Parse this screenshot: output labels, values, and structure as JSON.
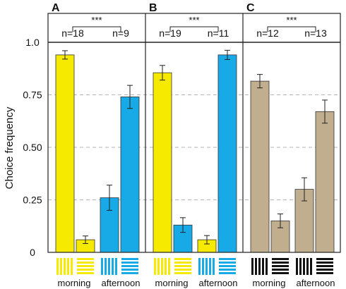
{
  "chart_data": {
    "type": "bar",
    "ylabel": "Choice frequency",
    "ylim": [
      0,
      1.0
    ],
    "yticks": [
      {
        "value": 0,
        "label": "0"
      },
      {
        "value": 0.25,
        "label": "0.25"
      },
      {
        "value": 0.5,
        "label": "0.50"
      },
      {
        "value": 0.75,
        "label": "0.75"
      },
      {
        "value": 1.0,
        "label": "1.0"
      }
    ],
    "grid": "dashed horizontal",
    "significance": "***",
    "x_group_labels": [
      "morning",
      "afternoon"
    ],
    "pattern_order": [
      "vertical-stripes",
      "horizontal-stripes",
      "vertical-stripes",
      "horizontal-stripes"
    ],
    "panels": [
      {
        "label": "A",
        "n_labels": [
          "n=18",
          "n=9"
        ],
        "bar_colors": [
          "#f5ea00",
          "#f5ea00",
          "#18a9e7",
          "#18a9e7"
        ],
        "pattern_colors": [
          "#f5ea00",
          "#f5ea00",
          "#18a9e7",
          "#18a9e7"
        ],
        "values": [
          0.94,
          0.06,
          0.26,
          0.74
        ],
        "errors": [
          0.02,
          0.018,
          0.06,
          0.055
        ]
      },
      {
        "label": "B",
        "n_labels": [
          "n=19",
          "n=11"
        ],
        "bar_colors": [
          "#f5ea00",
          "#18a9e7",
          "#f5ea00",
          "#18a9e7"
        ],
        "pattern_colors": [
          "#f5ea00",
          "#f5ea00",
          "#18a9e7",
          "#18a9e7"
        ],
        "values": [
          0.855,
          0.13,
          0.06,
          0.94
        ],
        "errors": [
          0.035,
          0.035,
          0.02,
          0.022
        ]
      },
      {
        "label": "C",
        "n_labels": [
          "n=12",
          "n=13"
        ],
        "bar_colors": [
          "#c0ae8f",
          "#c0ae8f",
          "#c0ae8f",
          "#c0ae8f"
        ],
        "pattern_colors": [
          "#111111",
          "#111111",
          "#111111",
          "#111111"
        ],
        "values": [
          0.815,
          0.15,
          0.3,
          0.67
        ],
        "errors": [
          0.032,
          0.033,
          0.055,
          0.055
        ]
      }
    ]
  }
}
